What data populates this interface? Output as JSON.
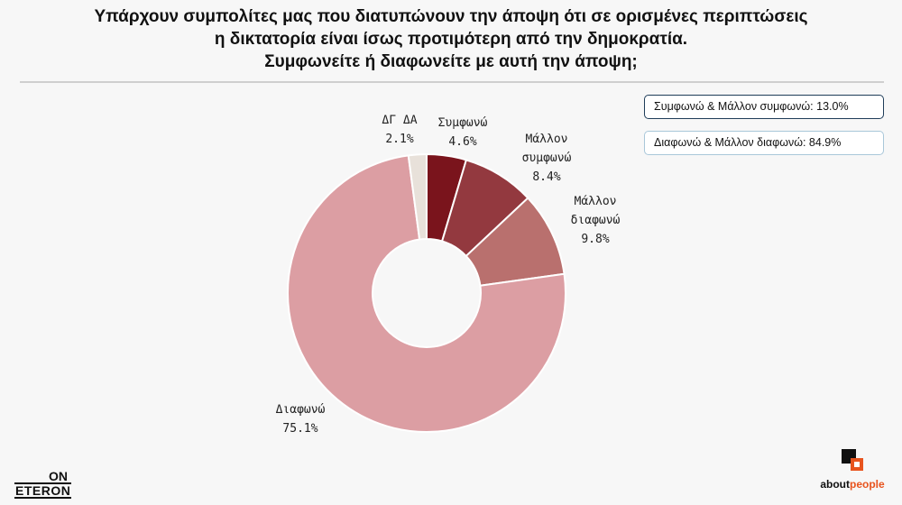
{
  "chart_data": {
    "type": "pie",
    "donut": true,
    "title_lines": [
      "Υπάρχουν συμπολίτες μας που διατυπώνουν την άποψη ότι σε ορισμένες περιπτώσεις",
      "η δικτατορία είναι ίσως προτιμότερη από την δημοκρατία.",
      "Συμφωνείτε ή διαφωνείτε με αυτή την άποψη;"
    ],
    "slices": [
      {
        "label": "Συμφωνώ",
        "value": 4.6,
        "value_label": "4.6%",
        "color": "#7a141c"
      },
      {
        "label": "Μάλλον συμφωνώ",
        "value": 8.4,
        "value_label": "8.4%",
        "color": "#93393f"
      },
      {
        "label": "Μάλλον διαφωνώ",
        "value": 9.8,
        "value_label": "9.8%",
        "color": "#b9706e"
      },
      {
        "label": "Διαφωνώ",
        "value": 75.1,
        "value_label": "75.1%",
        "color": "#dc9ea3"
      },
      {
        "label": "ΔΓ ΔΑ",
        "value": 2.1,
        "value_label": "2.1%",
        "color": "#e8e1da"
      }
    ],
    "summaries": {
      "agree": "Συμφωνώ & Μάλλον συμφωνώ: 13.0%",
      "disagree": "Διαφωνώ & Μάλλον διαφωνώ: 84.9%"
    }
  },
  "logos": {
    "on": "ON",
    "eteron": "ETERON",
    "aboutpeople_1": "about",
    "aboutpeople_2": "people"
  }
}
